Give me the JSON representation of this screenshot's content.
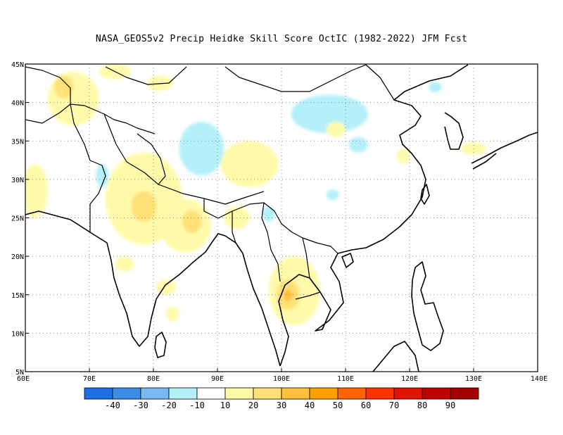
{
  "title": "NASA_GEOS5v2 Precip Heidke Skill Score OctIC (1982-2022) JFM Fcst",
  "map": {
    "lon_range": [
      60,
      140
    ],
    "lat_range": [
      5,
      45
    ],
    "lon_ticks": [
      {
        "value": 60,
        "label": "60E"
      },
      {
        "value": 70,
        "label": "70E"
      },
      {
        "value": 80,
        "label": "80E"
      },
      {
        "value": 90,
        "label": "90E"
      },
      {
        "value": 100,
        "label": "100E"
      },
      {
        "value": 110,
        "label": "110E"
      },
      {
        "value": 120,
        "label": "120E"
      },
      {
        "value": 130,
        "label": "130E"
      },
      {
        "value": 140,
        "label": "140E"
      }
    ],
    "lat_ticks": [
      {
        "value": 5,
        "label": "5N"
      },
      {
        "value": 10,
        "label": "10N"
      },
      {
        "value": 15,
        "label": "15N"
      },
      {
        "value": 20,
        "label": "20N"
      },
      {
        "value": 25,
        "label": "25N"
      },
      {
        "value": 30,
        "label": "30N"
      },
      {
        "value": 35,
        "label": "35N"
      },
      {
        "value": 40,
        "label": "40N"
      },
      {
        "value": 45,
        "label": "45N"
      }
    ],
    "grid": "dotted"
  },
  "colorbar": {
    "colors": [
      "#1e6ee6",
      "#3c8ce6",
      "#78b9f0",
      "#b4f0fa",
      "#ffffff",
      "#fffaaa",
      "#ffe178",
      "#ffc03c",
      "#ffa000",
      "#ff6400",
      "#ff3200",
      "#e11400",
      "#c00000",
      "#a50000"
    ],
    "labels": [
      "-40",
      "-30",
      "-20",
      "-10",
      "10",
      "20",
      "30",
      "40",
      "50",
      "60",
      "70",
      "80",
      "90"
    ]
  },
  "shaded_regions": [
    {
      "level": "-30",
      "lon": 87.5,
      "lat": 34,
      "rlon": 1.2,
      "rlat": 1.2
    },
    {
      "level": "-20",
      "lon": 87.5,
      "lat": 34,
      "rlon": 2.2,
      "rlat": 2.2
    },
    {
      "level": "-20",
      "lon": 105.5,
      "lat": 39.0,
      "rlon": 1.5,
      "rlat": 1.0
    },
    {
      "level": "-20",
      "lon": 108.5,
      "lat": 39.5,
      "rlon": 1.5,
      "rlat": 1.2
    },
    {
      "level": "-10",
      "lon": 107.5,
      "lat": 38.5,
      "rlon": 6.0,
      "rlat": 2.5
    },
    {
      "level": "-10",
      "lon": 87.5,
      "lat": 34,
      "rlon": 3.5,
      "rlat": 3.5
    },
    {
      "level": "-10",
      "lon": 112.0,
      "lat": 34.5,
      "rlon": 1.5,
      "rlat": 1.0
    },
    {
      "level": "-10",
      "lon": 72.0,
      "lat": 30.5,
      "rlon": 1.0,
      "rlat": 1.5
    },
    {
      "level": "-10",
      "lon": 98.0,
      "lat": 25.5,
      "rlon": 1.0,
      "rlat": 1.0
    },
    {
      "level": "-10",
      "lon": 108.0,
      "lat": 28.0,
      "rlon": 1.0,
      "rlat": 0.7
    },
    {
      "level": "-10",
      "lon": 124.0,
      "lat": 42.0,
      "rlon": 1.0,
      "rlat": 0.7
    },
    {
      "level": "10",
      "lon": 67.5,
      "lat": 40.5,
      "rlon": 4.0,
      "rlat": 3.5
    },
    {
      "level": "10",
      "lon": 78.5,
      "lat": 27.5,
      "rlon": 6.0,
      "rlat": 6.0
    },
    {
      "level": "10",
      "lon": 85.0,
      "lat": 24.0,
      "rlon": 4.0,
      "rlat": 3.5
    },
    {
      "level": "10",
      "lon": 102.0,
      "lat": 15.5,
      "rlon": 4.0,
      "rlat": 4.5
    },
    {
      "level": "10",
      "lon": 95.0,
      "lat": 32.0,
      "rlon": 4.5,
      "rlat": 3.0
    },
    {
      "level": "10",
      "lon": 61.5,
      "lat": 28.5,
      "rlon": 2.0,
      "rlat": 3.5
    },
    {
      "level": "10",
      "lon": 74.0,
      "lat": 44.0,
      "rlon": 2.5,
      "rlat": 1.0
    },
    {
      "level": "10",
      "lon": 81.0,
      "lat": 42.5,
      "rlon": 2.0,
      "rlat": 1.0
    },
    {
      "level": "10",
      "lon": 93.0,
      "lat": 25.0,
      "rlon": 2.0,
      "rlat": 1.5
    },
    {
      "level": "10",
      "lon": 108.5,
      "lat": 36.5,
      "rlon": 1.5,
      "rlat": 1.0
    },
    {
      "level": "10",
      "lon": 119.0,
      "lat": 33.0,
      "rlon": 1.0,
      "rlat": 1.0
    },
    {
      "level": "10",
      "lon": 130.0,
      "lat": 34.0,
      "rlon": 2.0,
      "rlat": 0.8
    },
    {
      "level": "10",
      "lon": 82.0,
      "lat": 16.0,
      "rlon": 1.5,
      "rlat": 1.0
    },
    {
      "level": "10",
      "lon": 83.0,
      "lat": 12.5,
      "rlon": 1.0,
      "rlat": 1.0
    },
    {
      "level": "10",
      "lon": 75.5,
      "lat": 19.0,
      "rlon": 1.5,
      "rlat": 1.0
    },
    {
      "level": "20",
      "lon": 78.5,
      "lat": 26.5,
      "rlon": 2.0,
      "rlat": 2.0
    },
    {
      "level": "20",
      "lon": 86.0,
      "lat": 24.5,
      "rlon": 1.5,
      "rlat": 1.5
    },
    {
      "level": "20",
      "lon": 101.0,
      "lat": 15.0,
      "rlon": 1.8,
      "rlat": 2.0
    },
    {
      "level": "20",
      "lon": 66.0,
      "lat": 42.0,
      "rlon": 1.5,
      "rlat": 1.5
    },
    {
      "level": "30",
      "lon": 101.0,
      "lat": 15.0,
      "rlon": 0.7,
      "rlat": 0.8
    }
  ]
}
